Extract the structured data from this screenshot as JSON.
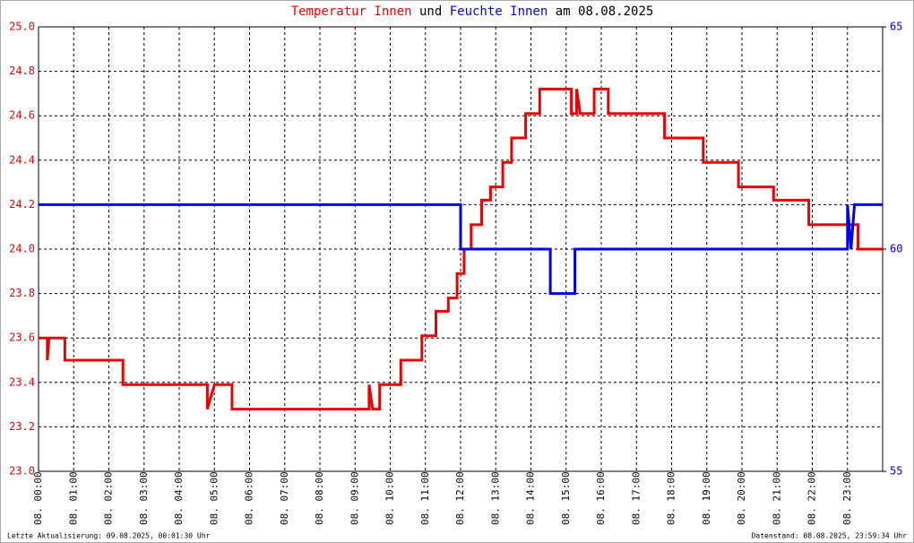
{
  "chart_data": {
    "type": "line",
    "title_words": [
      "und",
      "am 08.08.2025"
    ],
    "series": [
      {
        "name": "Temperatur Innen",
        "color": "#ee0000",
        "x": [
          0,
          0.25,
          0.25,
          0.3,
          0.75,
          0.75,
          2.4,
          2.4,
          4.8,
          4.8,
          5.0,
          5.5,
          5.5,
          5.9,
          9.4,
          9.4,
          9.5,
          9.7,
          9.7,
          10.3,
          10.3,
          10.9,
          10.9,
          11.3,
          11.3,
          11.65,
          11.65,
          11.9,
          11.9,
          12.1,
          12.1,
          12.3,
          12.3,
          12.6,
          12.6,
          12.85,
          12.85,
          13.2,
          13.2,
          13.45,
          13.45,
          13.85,
          13.85,
          14.25,
          14.25,
          15.15,
          15.15,
          15.3,
          15.3,
          15.4,
          15.8,
          15.8,
          16.2,
          16.2,
          17.8,
          17.8,
          18.9,
          18.9,
          19.9,
          19.9,
          20.9,
          20.9,
          21.9,
          21.9,
          23.3,
          23.3,
          24
        ],
        "values": [
          23.6,
          23.6,
          23.5,
          23.6,
          23.6,
          23.5,
          23.5,
          23.39,
          23.39,
          23.28,
          23.39,
          23.39,
          23.28,
          23.28,
          23.28,
          23.39,
          23.28,
          23.28,
          23.39,
          23.39,
          23.5,
          23.5,
          23.61,
          23.61,
          23.72,
          23.72,
          23.78,
          23.78,
          23.89,
          23.89,
          24.0,
          24.0,
          24.11,
          24.11,
          24.22,
          24.22,
          24.28,
          24.28,
          24.39,
          24.39,
          24.5,
          24.5,
          24.61,
          24.61,
          24.72,
          24.72,
          24.61,
          24.61,
          24.72,
          24.61,
          24.61,
          24.72,
          24.72,
          24.61,
          24.61,
          24.5,
          24.5,
          24.39,
          24.39,
          24.28,
          24.28,
          24.22,
          24.22,
          24.11,
          24.11,
          24.0,
          24.0
        ]
      },
      {
        "name": "Feuchte Innen",
        "color": "#0000ee",
        "axis": "y2",
        "x": [
          0,
          12.0,
          12.0,
          14.55,
          14.55,
          15.25,
          15.25,
          23.0,
          23.0,
          23.1,
          23.2,
          24
        ],
        "values": [
          61,
          61,
          60,
          60,
          59,
          59,
          60,
          60,
          61,
          60,
          61,
          61
        ]
      }
    ],
    "xlim": [
      0,
      24
    ],
    "xticks": [
      {
        "value": 0,
        "label": "08. 00:00"
      },
      {
        "value": 1,
        "label": "08. 01:00"
      },
      {
        "value": 2,
        "label": "08. 02:00"
      },
      {
        "value": 3,
        "label": "08. 03:00"
      },
      {
        "value": 4,
        "label": "08. 04:00"
      },
      {
        "value": 5,
        "label": "08. 05:00"
      },
      {
        "value": 6,
        "label": "08. 06:00"
      },
      {
        "value": 7,
        "label": "08. 07:00"
      },
      {
        "value": 8,
        "label": "08. 08:00"
      },
      {
        "value": 9,
        "label": "08. 09:00"
      },
      {
        "value": 10,
        "label": "08. 10:00"
      },
      {
        "value": 11,
        "label": "08. 11:00"
      },
      {
        "value": 12,
        "label": "08. 12:00"
      },
      {
        "value": 13,
        "label": "08. 13:00"
      },
      {
        "value": 14,
        "label": "08. 14:00"
      },
      {
        "value": 15,
        "label": "08. 15:00"
      },
      {
        "value": 16,
        "label": "08. 16:00"
      },
      {
        "value": 17,
        "label": "08. 17:00"
      },
      {
        "value": 18,
        "label": "08. 18:00"
      },
      {
        "value": 19,
        "label": "08. 19:00"
      },
      {
        "value": 20,
        "label": "08. 20:00"
      },
      {
        "value": 21,
        "label": "08. 21:00"
      },
      {
        "value": 22,
        "label": "08. 22:00"
      },
      {
        "value": 23,
        "label": "08. 23:00"
      }
    ],
    "ylim": [
      23,
      25
    ],
    "yticks": [
      {
        "value": 23,
        "label": "23.0"
      },
      23.2,
      23.4,
      23.6,
      23.8,
      {
        "value": 24,
        "label": "24.0"
      },
      24.2,
      24.4,
      24.6,
      24.8,
      {
        "value": 25,
        "label": "25.0"
      }
    ],
    "y2lim": [
      55,
      65
    ],
    "y2ticks": [
      55,
      60,
      65
    ],
    "grid": true,
    "footer_left": "Letzte Aktualisierung: 09.08.2025, 00:01:30 Uhr",
    "footer_right": "Datenstand: 08.08.2025, 23:59:34 Uhr"
  }
}
